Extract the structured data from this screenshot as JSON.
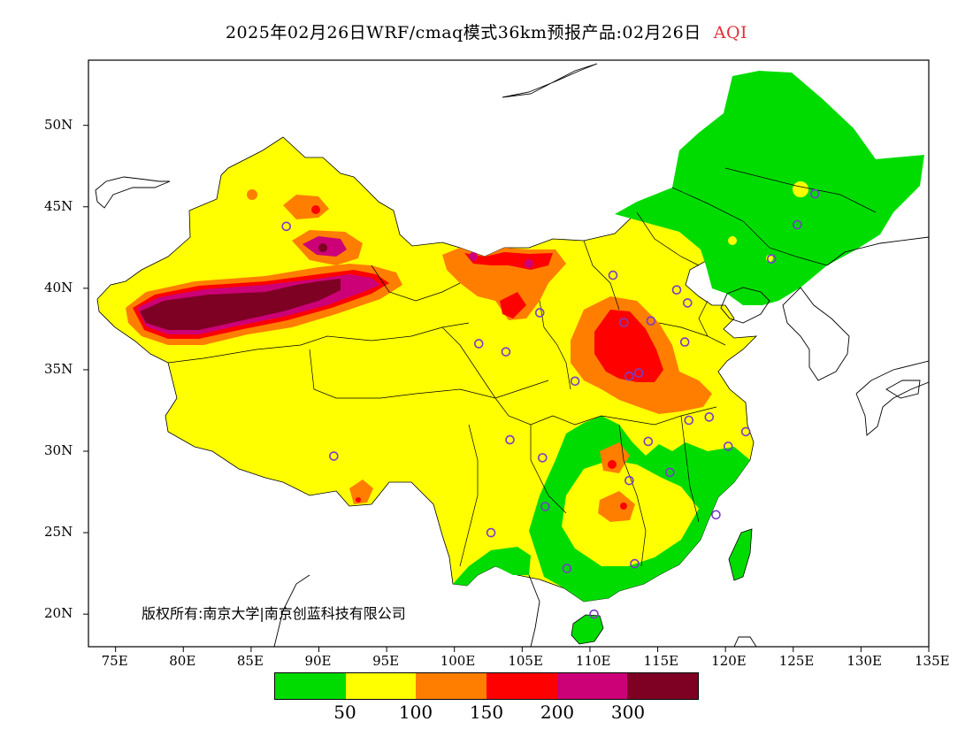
{
  "title": {
    "main": "2025年02月26日WRF/cmaq模式36km预报产品:02月26日",
    "variable": "AQI",
    "variable_color": "#e0303a"
  },
  "copyright": "版权所有:南京大学|南京创蓝科技有限公司",
  "map": {
    "type": "filled-contour-map",
    "lon_range": [
      73,
      135
    ],
    "lat_range": [
      18,
      54
    ],
    "lat_ticks": [
      "50N",
      "45N",
      "40N",
      "35N",
      "30N",
      "25N",
      "20N"
    ],
    "lon_ticks": [
      "75E",
      "80E",
      "85E",
      "90E",
      "95E",
      "100E",
      "105E",
      "110E",
      "115E",
      "120E",
      "125E",
      "130E",
      "135E"
    ],
    "lat_tick_values": [
      50,
      45,
      40,
      35,
      30,
      25,
      20
    ],
    "lon_tick_values": [
      75,
      80,
      85,
      90,
      95,
      100,
      105,
      110,
      115,
      120,
      125,
      130,
      135
    ],
    "station_marker_color": "#7a3cc8",
    "stations": [
      [
        87.6,
        43.8
      ],
      [
        91.1,
        29.7
      ],
      [
        101.8,
        36.6
      ],
      [
        103.8,
        36.1
      ],
      [
        106.3,
        38.5
      ],
      [
        111.7,
        40.8
      ],
      [
        116.4,
        39.9
      ],
      [
        117.2,
        39.1
      ],
      [
        114.5,
        38.0
      ],
      [
        112.5,
        37.9
      ],
      [
        117.0,
        36.7
      ],
      [
        113.6,
        34.8
      ],
      [
        108.9,
        34.3
      ],
      [
        112.9,
        34.6
      ],
      [
        104.1,
        30.7
      ],
      [
        106.5,
        29.6
      ],
      [
        114.3,
        30.6
      ],
      [
        117.3,
        31.9
      ],
      [
        118.8,
        32.1
      ],
      [
        121.5,
        31.2
      ],
      [
        120.2,
        30.3
      ],
      [
        115.9,
        28.7
      ],
      [
        112.9,
        28.2
      ],
      [
        106.7,
        26.6
      ],
      [
        102.7,
        25.0
      ],
      [
        108.3,
        22.8
      ],
      [
        113.3,
        23.1
      ],
      [
        119.3,
        26.1
      ],
      [
        110.3,
        20.0
      ],
      [
        126.6,
        45.8
      ],
      [
        125.3,
        43.9
      ],
      [
        123.4,
        41.8
      ]
    ]
  },
  "legend": {
    "colors": [
      "#00dc00",
      "#ffff00",
      "#ff7e00",
      "#ff0000",
      "#cc0077",
      "#7e0023"
    ],
    "labels": [
      "50",
      "100",
      "150",
      "200",
      "300"
    ]
  }
}
